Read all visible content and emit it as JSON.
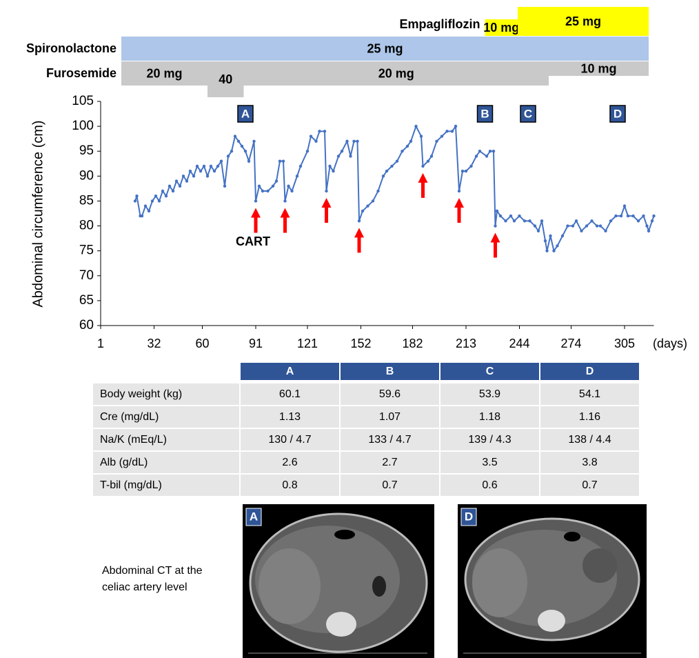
{
  "chart_data": {
    "type": "line",
    "y_label": "Abdominal circumference (cm)",
    "x_label": "(days)",
    "xlim": [
      1,
      322
    ],
    "xticks": [
      1,
      32,
      60,
      91,
      121,
      152,
      182,
      213,
      244,
      274,
      305
    ],
    "ylim": [
      60,
      105
    ],
    "yticks": [
      60,
      65,
      70,
      75,
      80,
      85,
      90,
      95,
      100,
      105
    ],
    "x": [
      21,
      22,
      24,
      25,
      27,
      29,
      31,
      33,
      35,
      37,
      39,
      41,
      43,
      45,
      47,
      49,
      51,
      53,
      55,
      57,
      59,
      61,
      63,
      65,
      67,
      69,
      71,
      73,
      75,
      77,
      79,
      81,
      83,
      85,
      87,
      90,
      91,
      93,
      95,
      98,
      101,
      103,
      105,
      107,
      108,
      110,
      112,
      115,
      117,
      121,
      123,
      126,
      128,
      131,
      132,
      134,
      136,
      139,
      141,
      144,
      146,
      148,
      150,
      151,
      153,
      156,
      159,
      162,
      165,
      167,
      170,
      173,
      176,
      179,
      181,
      184,
      187,
      188,
      191,
      193,
      196,
      199,
      202,
      205,
      207,
      209,
      211,
      213,
      216,
      219,
      221,
      225,
      227,
      229,
      230,
      231,
      233,
      236,
      239,
      241,
      244,
      247,
      250,
      253,
      255,
      257,
      259,
      260,
      262,
      264,
      266,
      269,
      272,
      275,
      277,
      280,
      283,
      286,
      289,
      291,
      294,
      297,
      300,
      303,
      305,
      307,
      310,
      313,
      316,
      318,
      319,
      321,
      322
    ],
    "series": [
      {
        "color": "#4472c4",
        "values": [
          85,
          86,
          82,
          82,
          84,
          83,
          85,
          86,
          85,
          87,
          86,
          88,
          87,
          89,
          88,
          90,
          89,
          91,
          90,
          92,
          91,
          92,
          90,
          92,
          91,
          92,
          93,
          88,
          94,
          95,
          98,
          97,
          96,
          95,
          93,
          97,
          85,
          88,
          87,
          87,
          88,
          89,
          93,
          93,
          85,
          88,
          87,
          90,
          92,
          95,
          98,
          97,
          99,
          99,
          87,
          92,
          91,
          94,
          95,
          97,
          94,
          97,
          97,
          81,
          83,
          84,
          85,
          87,
          90,
          91,
          92,
          93,
          95,
          96,
          97,
          100,
          98,
          92,
          93,
          94,
          97,
          98,
          99,
          99,
          100,
          87,
          91,
          91,
          92,
          94,
          95,
          94,
          95,
          95,
          80,
          83,
          82,
          81,
          82,
          81,
          82,
          81,
          81,
          80,
          79,
          81,
          77,
          75,
          78,
          75,
          76,
          78,
          80,
          80,
          81,
          79,
          80,
          81,
          80,
          80,
          79,
          81,
          82,
          82,
          84,
          82,
          82,
          81,
          82,
          80,
          79,
          81,
          82
        ]
      }
    ],
    "cart_label": "CART",
    "cart_days": [
      91,
      108,
      132,
      151,
      188,
      209,
      230
    ],
    "arrow_color": "#ff0000",
    "timepoints": [
      {
        "label": "A",
        "day": 85
      },
      {
        "label": "B",
        "day": 224
      },
      {
        "label": "C",
        "day": 249
      },
      {
        "label": "D",
        "day": 301
      }
    ],
    "medications": [
      {
        "name": "Empagliflozin",
        "color": "#ffff00",
        "doses": [
          {
            "value": 10,
            "label": "10 mg",
            "start": 224,
            "end": 243
          },
          {
            "value": 25,
            "label": "25 mg",
            "start": 243,
            "end": 319
          }
        ]
      },
      {
        "name": "Spironolactone",
        "color": "#adc6e9",
        "doses": [
          {
            "value": 25,
            "label": "25 mg",
            "start": 13,
            "end": 319
          }
        ]
      },
      {
        "name": "Furosemide",
        "color": "#c9c9c9",
        "doses": [
          {
            "value": 20,
            "label": "20 mg",
            "start": 13,
            "end": 63
          },
          {
            "value": 40,
            "start": 63,
            "end": 84
          },
          {
            "value": 20,
            "label": "20 mg",
            "start": 84,
            "end": 261
          },
          {
            "value": 10,
            "label": "10 mg",
            "start": 261,
            "end": 319
          }
        ]
      }
    ]
  },
  "table": {
    "columns": [
      "A",
      "B",
      "C",
      "D"
    ],
    "rows": [
      [
        "Body weight (kg)",
        "60.1",
        "59.6",
        "53.9",
        "54.1"
      ],
      [
        "Cre (mg/dL)",
        "1.13",
        "1.07",
        "1.18",
        "1.16"
      ],
      [
        "Na/K (mEq/L)",
        "130 / 4.7",
        "133 / 4.7",
        "139 / 4.3",
        "138 / 4.4"
      ],
      [
        "Alb (g/dL)",
        "2.6",
        "2.7",
        "3.5",
        "3.8"
      ],
      [
        "T-bil (mg/dL)",
        "0.8",
        "0.7",
        "0.6",
        "0.7"
      ]
    ]
  },
  "ct_images": {
    "caption": [
      "Abdominal CT at the",
      "celiac artery level"
    ],
    "panels": [
      "A",
      "D"
    ]
  }
}
